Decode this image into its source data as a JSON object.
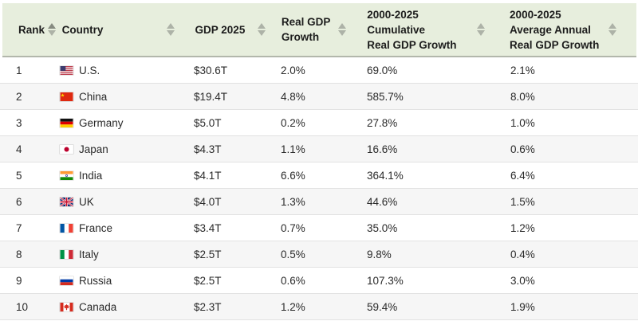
{
  "table": {
    "columns": [
      {
        "id": "rank",
        "label": "Rank",
        "sort": "asc"
      },
      {
        "id": "country",
        "label": "Country",
        "sort": null
      },
      {
        "id": "gdp",
        "label": "GDP 2025",
        "sort": null
      },
      {
        "id": "growth",
        "label": "Real GDP\nGrowth",
        "sort": null
      },
      {
        "id": "cumulative",
        "label": "2000-2025\nCumulative\nReal GDP Growth",
        "sort": null
      },
      {
        "id": "average",
        "label": "2000-2025\nAverage Annual\nReal GDP Growth",
        "sort": null
      }
    ],
    "rows": [
      {
        "rank": "1",
        "flag": "us-flag-icon",
        "country": "U.S.",
        "gdp": "$30.6T",
        "growth": "2.0%",
        "cumulative": "69.0%",
        "average": "2.1%"
      },
      {
        "rank": "2",
        "flag": "cn-flag-icon",
        "country": "China",
        "gdp": "$19.4T",
        "growth": "4.8%",
        "cumulative": "585.7%",
        "average": "8.0%"
      },
      {
        "rank": "3",
        "flag": "de-flag-icon",
        "country": "Germany",
        "gdp": "$5.0T",
        "growth": "0.2%",
        "cumulative": "27.8%",
        "average": "1.0%"
      },
      {
        "rank": "4",
        "flag": "jp-flag-icon",
        "country": "Japan",
        "gdp": "$4.3T",
        "growth": "1.1%",
        "cumulative": "16.6%",
        "average": "0.6%"
      },
      {
        "rank": "5",
        "flag": "in-flag-icon",
        "country": "India",
        "gdp": "$4.1T",
        "growth": "6.6%",
        "cumulative": "364.1%",
        "average": "6.4%"
      },
      {
        "rank": "6",
        "flag": "gb-flag-icon",
        "country": "UK",
        "gdp": "$4.0T",
        "growth": "1.3%",
        "cumulative": "44.6%",
        "average": "1.5%"
      },
      {
        "rank": "7",
        "flag": "fr-flag-icon",
        "country": "France",
        "gdp": "$3.4T",
        "growth": "0.7%",
        "cumulative": "35.0%",
        "average": "1.2%"
      },
      {
        "rank": "8",
        "flag": "it-flag-icon",
        "country": "Italy",
        "gdp": "$2.5T",
        "growth": "0.5%",
        "cumulative": "9.8%",
        "average": "0.4%"
      },
      {
        "rank": "9",
        "flag": "ru-flag-icon",
        "country": "Russia",
        "gdp": "$2.5T",
        "growth": "0.6%",
        "cumulative": "107.3%",
        "average": "3.0%"
      },
      {
        "rank": "10",
        "flag": "ca-flag-icon",
        "country": "Canada",
        "gdp": "$2.3T",
        "growth": "1.2%",
        "cumulative": "59.4%",
        "average": "1.9%"
      }
    ]
  },
  "colors": {
    "header_bg": "#e7eedd",
    "header_border": "#b2b7ab",
    "row_alt_bg": "#f6f6f6",
    "row_border": "#e2e2e2",
    "sort_arrow": "#adb2a7",
    "sort_arrow_active": "#868b80"
  }
}
